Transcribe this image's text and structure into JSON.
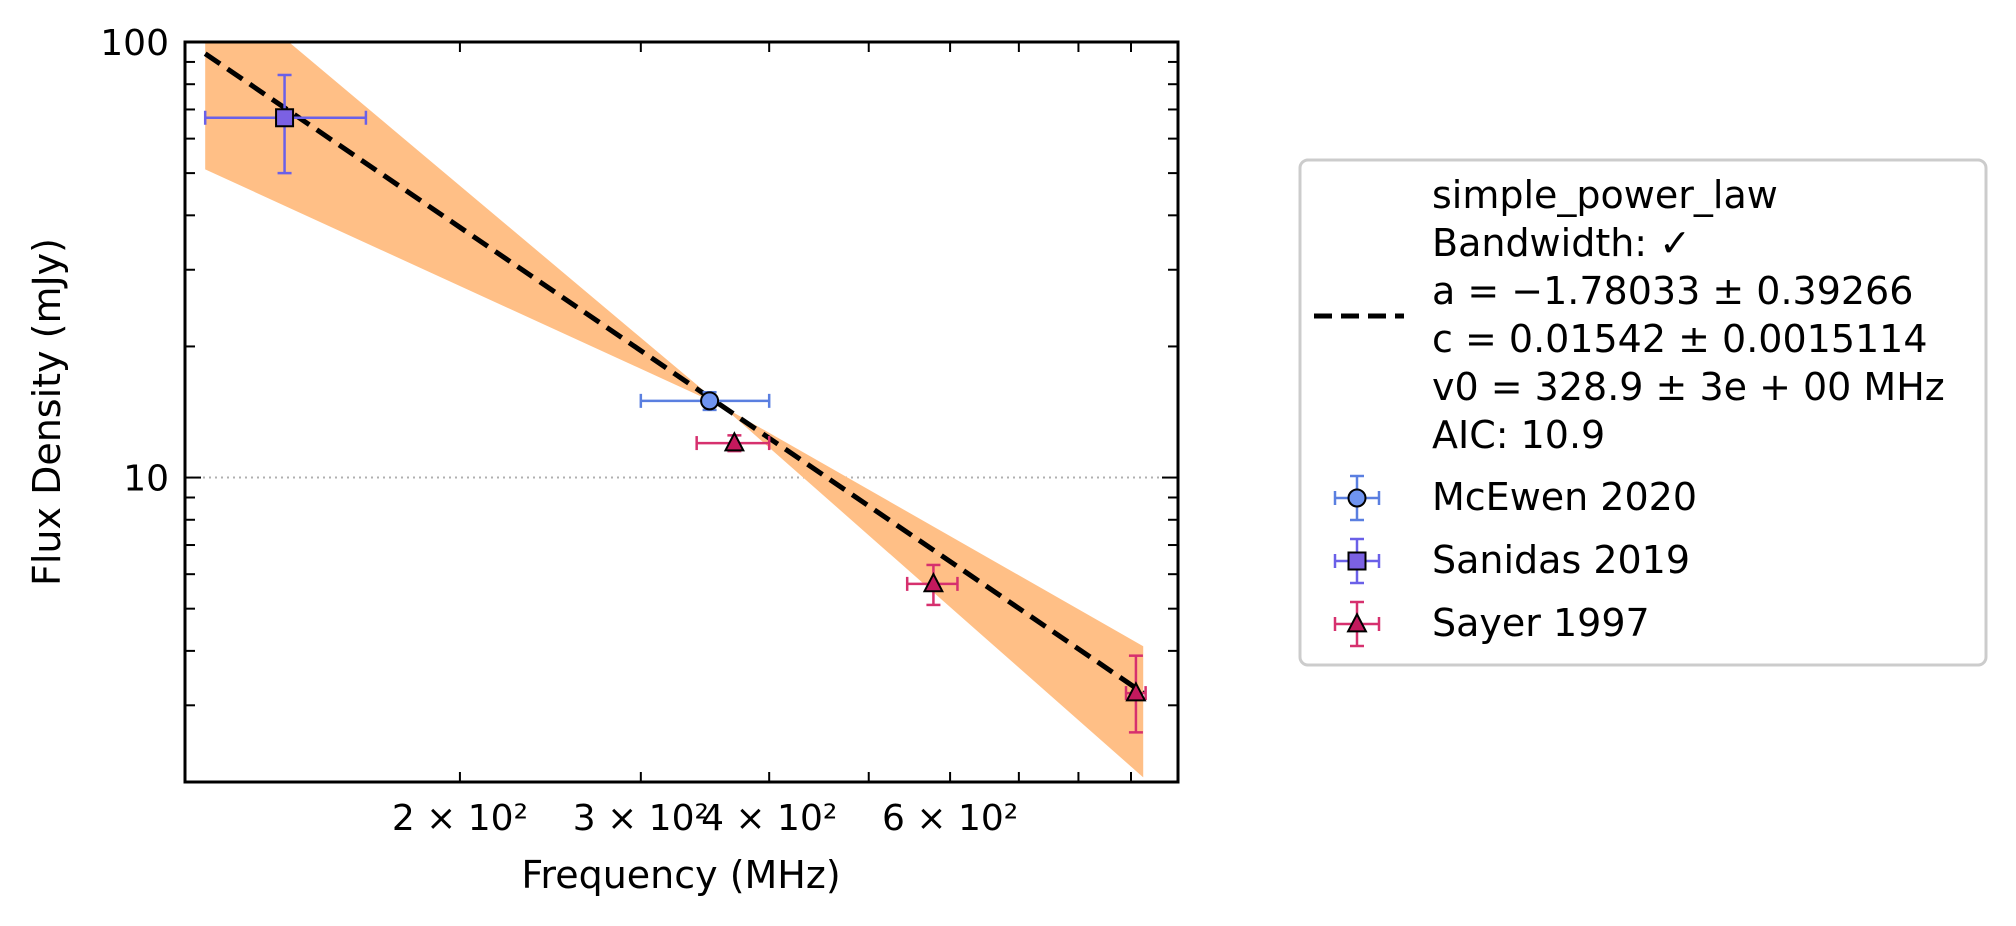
{
  "chart_data": {
    "type": "scatter",
    "title": "",
    "xlabel": "Frequency (MHz)",
    "ylabel": "Flux Density (mJy)",
    "xscale": "log",
    "yscale": "log",
    "xlim": [
      108,
      1000
    ],
    "ylim": [
      2.0,
      100
    ],
    "grid": "horizontal dotted at major y ticks",
    "legend_position": "right, outside",
    "x_tick_labels": [
      {
        "value": 200,
        "label": "2 × 10²"
      },
      {
        "value": 300,
        "label": "3 × 10²"
      },
      {
        "value": 400,
        "label": "4 × 10²"
      },
      {
        "value": 600,
        "label": "6 × 10²"
      }
    ],
    "y_tick_labels": [
      {
        "value": 10,
        "label": "10"
      },
      {
        "value": 100,
        "label": "100"
      }
    ],
    "fit": {
      "model": "simple_power_law",
      "legend_lines": [
        "simple_power_law",
        "Bandwidth: ✓",
        "a = −1.78033 ± 0.39266",
        "c = 0.01542 ± 0.0015114",
        "v0 = 328.9 ± 3e + 00 MHz",
        "AIC: 10.9"
      ],
      "line": {
        "x": [
          113,
          925
        ],
        "y": [
          94,
          3.2
        ]
      },
      "band_upper": {
        "x": [
          113,
          925
        ],
        "y": [
          145,
          4.1
        ]
      },
      "band_lower": {
        "x": [
          113,
          925
        ],
        "y": [
          51,
          2.05
        ]
      },
      "pivot_x": 360,
      "line_color": "#000000",
      "band_color": "#ffbf86"
    },
    "series": [
      {
        "name": "McEwen 2020",
        "marker": "circle",
        "color": "#6f94f0",
        "edge_color": "#5a7fe0",
        "points": [
          {
            "x": 350,
            "y": 15.0,
            "xerr": [
              300,
              400
            ],
            "yerr": [
              14.3,
              15.7
            ]
          }
        ]
      },
      {
        "name": "Sanidas 2019",
        "marker": "square",
        "color": "#7b61e3",
        "edge_color": "#6a60e8",
        "points": [
          {
            "x": 135,
            "y": 67.0,
            "xerr": [
              113,
              162
            ],
            "yerr": [
              50,
              84
            ]
          }
        ]
      },
      {
        "name": "Sayer 1997",
        "marker": "triangle",
        "color": "#c3195d",
        "edge_color": "#d6306e",
        "points": [
          {
            "x": 370,
            "y": 12.0,
            "xerr": [
              340,
              400
            ],
            "yerr": [
              11.5,
              12.5
            ]
          },
          {
            "x": 578,
            "y": 5.7,
            "xerr": [
              545,
              610
            ],
            "yerr": [
              5.1,
              6.3
            ]
          },
          {
            "x": 910,
            "y": 3.2,
            "xerr": [
              890,
              930
            ],
            "yerr": [
              2.6,
              3.9
            ]
          }
        ]
      }
    ]
  }
}
